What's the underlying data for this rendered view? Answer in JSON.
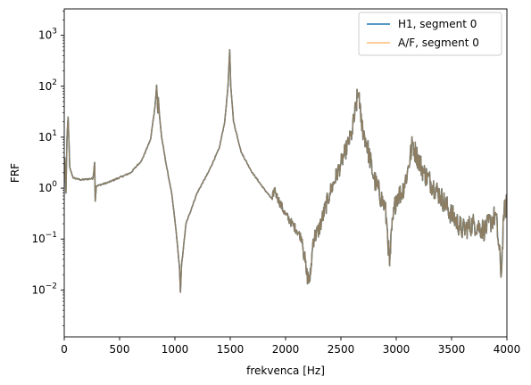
{
  "chart_data": {
    "type": "line",
    "xlabel": "frekvenca [Hz]",
    "ylabel": "FRF",
    "xlim": [
      0,
      4000
    ],
    "ylim": [
      0.0012,
      3300
    ],
    "yscale": "log",
    "grid": false,
    "legend_placement": "top-right",
    "x_ticks": [
      0,
      500,
      1000,
      1500,
      2000,
      2500,
      3000,
      3500,
      4000
    ],
    "y_ticks": [
      {
        "value": 0.01,
        "base": "10",
        "exp": "−2"
      },
      {
        "value": 0.1,
        "base": "10",
        "exp": "−1"
      },
      {
        "value": 1,
        "base": "10",
        "exp": "0"
      },
      {
        "value": 10,
        "base": "10",
        "exp": "1"
      },
      {
        "value": 100,
        "base": "10",
        "exp": "2"
      },
      {
        "value": 1000,
        "base": "10",
        "exp": "3"
      }
    ],
    "series": [
      {
        "name": "H1, segment 0",
        "color": "#1f77b4",
        "values": [
          [
            5,
            4
          ],
          [
            15,
            0.8
          ],
          [
            25,
            10
          ],
          [
            35,
            25
          ],
          [
            50,
            2.5
          ],
          [
            80,
            1.6
          ],
          [
            150,
            1.45
          ],
          [
            260,
            1.55
          ],
          [
            275,
            3.2
          ],
          [
            280,
            0.55
          ],
          [
            290,
            1.1
          ],
          [
            400,
            1.3
          ],
          [
            600,
            2
          ],
          [
            700,
            3.5
          ],
          [
            780,
            9
          ],
          [
            820,
            40
          ],
          [
            835,
            105
          ],
          [
            845,
            30
          ],
          [
            850,
            60
          ],
          [
            860,
            28
          ],
          [
            880,
            10
          ],
          [
            920,
            3
          ],
          [
            970,
            0.8
          ],
          [
            1010,
            0.15
          ],
          [
            1040,
            0.03
          ],
          [
            1050,
            0.009
          ],
          [
            1060,
            0.03
          ],
          [
            1100,
            0.2
          ],
          [
            1200,
            0.8
          ],
          [
            1300,
            2
          ],
          [
            1400,
            6
          ],
          [
            1450,
            20
          ],
          [
            1480,
            100
          ],
          [
            1495,
            520
          ],
          [
            1505,
            100
          ],
          [
            1530,
            20
          ],
          [
            1600,
            5
          ],
          [
            1700,
            2
          ],
          [
            1800,
            1
          ],
          [
            1880,
            0.6
          ],
          [
            1900,
            1
          ],
          [
            1920,
            0.7
          ],
          [
            2000,
            0.3
          ],
          [
            2100,
            0.15
          ],
          [
            2150,
            0.1
          ],
          [
            2190,
            0.02
          ],
          [
            2220,
            0.015
          ],
          [
            2250,
            0.1
          ],
          [
            2300,
            0.15
          ],
          [
            2400,
            0.8
          ],
          [
            2500,
            3
          ],
          [
            2600,
            12
          ],
          [
            2650,
            60
          ],
          [
            2665,
            75
          ],
          [
            2680,
            20
          ],
          [
            2730,
            8
          ],
          [
            2800,
            1.5
          ],
          [
            2900,
            0.4
          ],
          [
            2920,
            0.15
          ],
          [
            2940,
            0.03
          ],
          [
            2960,
            0.15
          ],
          [
            3000,
            0.7
          ],
          [
            3050,
            0.8
          ],
          [
            3100,
            2
          ],
          [
            3150,
            8
          ],
          [
            3160,
            6
          ],
          [
            3250,
            2
          ],
          [
            3400,
            0.7
          ],
          [
            3500,
            0.3
          ],
          [
            3600,
            0.15
          ],
          [
            3700,
            0.2
          ],
          [
            3800,
            0.15
          ],
          [
            3900,
            0.3
          ],
          [
            3950,
            0.02
          ],
          [
            3970,
            0.3
          ],
          [
            4000,
            0.5
          ]
        ]
      },
      {
        "name": "A/F, segment 0",
        "color": "#ffbb78",
        "values": [
          [
            5,
            4
          ],
          [
            15,
            0.8
          ],
          [
            25,
            10
          ],
          [
            35,
            25
          ],
          [
            50,
            2.5
          ],
          [
            80,
            1.6
          ],
          [
            150,
            1.45
          ],
          [
            260,
            1.55
          ],
          [
            275,
            3.2
          ],
          [
            280,
            0.55
          ],
          [
            290,
            1.1
          ],
          [
            400,
            1.3
          ],
          [
            600,
            2
          ],
          [
            700,
            3.5
          ],
          [
            780,
            9
          ],
          [
            820,
            40
          ],
          [
            835,
            105
          ],
          [
            845,
            30
          ],
          [
            850,
            60
          ],
          [
            860,
            28
          ],
          [
            880,
            10
          ],
          [
            920,
            3
          ],
          [
            970,
            0.8
          ],
          [
            1010,
            0.15
          ],
          [
            1040,
            0.03
          ],
          [
            1050,
            0.009
          ],
          [
            1060,
            0.03
          ],
          [
            1100,
            0.2
          ],
          [
            1200,
            0.8
          ],
          [
            1300,
            2
          ],
          [
            1400,
            6
          ],
          [
            1450,
            20
          ],
          [
            1480,
            100
          ],
          [
            1495,
            520
          ],
          [
            1505,
            100
          ],
          [
            1530,
            20
          ],
          [
            1600,
            5
          ],
          [
            1700,
            2
          ],
          [
            1800,
            1
          ],
          [
            1880,
            0.6
          ],
          [
            1900,
            1
          ],
          [
            1920,
            0.7
          ],
          [
            2000,
            0.3
          ],
          [
            2100,
            0.15
          ],
          [
            2150,
            0.1
          ],
          [
            2190,
            0.02
          ],
          [
            2220,
            0.015
          ],
          [
            2250,
            0.1
          ],
          [
            2300,
            0.15
          ],
          [
            2400,
            0.8
          ],
          [
            2500,
            3
          ],
          [
            2600,
            12
          ],
          [
            2650,
            60
          ],
          [
            2665,
            75
          ],
          [
            2680,
            20
          ],
          [
            2730,
            8
          ],
          [
            2800,
            1.5
          ],
          [
            2900,
            0.4
          ],
          [
            2920,
            0.15
          ],
          [
            2940,
            0.03
          ],
          [
            2960,
            0.15
          ],
          [
            3000,
            0.7
          ],
          [
            3050,
            0.8
          ],
          [
            3100,
            2
          ],
          [
            3150,
            8
          ],
          [
            3160,
            6
          ],
          [
            3250,
            2
          ],
          [
            3400,
            0.7
          ],
          [
            3500,
            0.3
          ],
          [
            3600,
            0.15
          ],
          [
            3700,
            0.2
          ],
          [
            3800,
            0.15
          ],
          [
            3900,
            0.3
          ],
          [
            3950,
            0.02
          ],
          [
            3970,
            0.3
          ],
          [
            4000,
            0.5
          ]
        ]
      }
    ],
    "overlap_color": "#8c7d63"
  }
}
